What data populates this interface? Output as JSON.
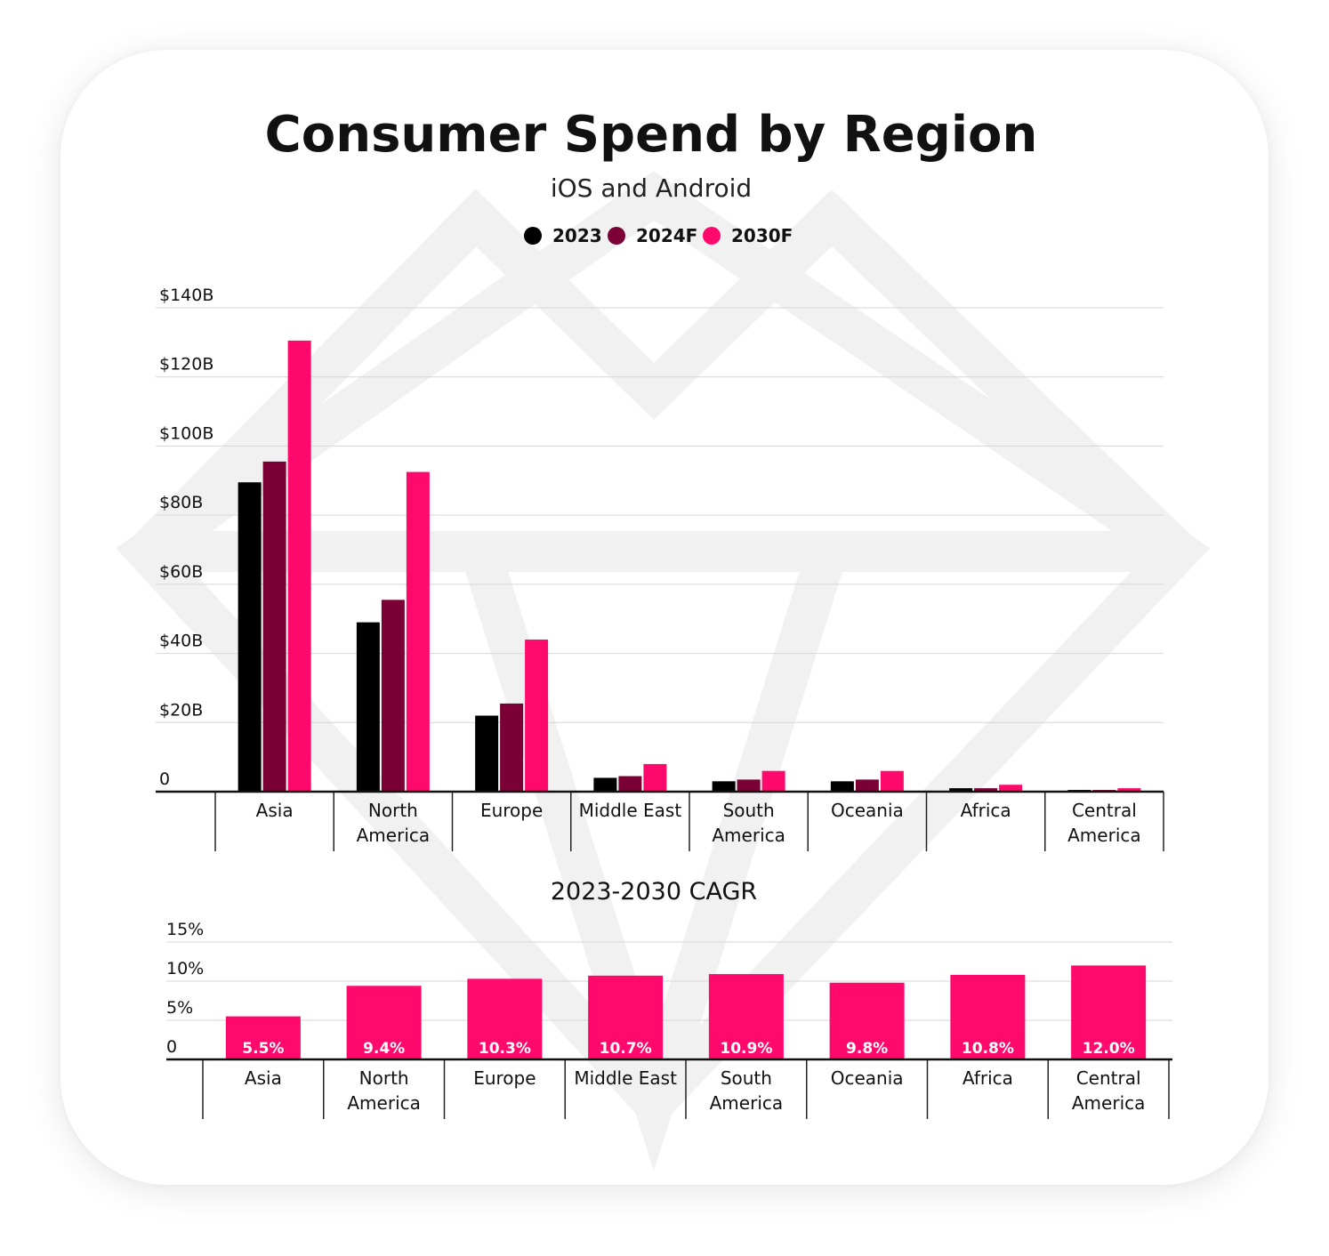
{
  "colors": {
    "2023": "#000000",
    "2024F": "#7a0036",
    "2030F": "#ff0a6c"
  },
  "chart_data": [
    {
      "type": "bar",
      "title": "Consumer Spend by Region",
      "subtitle": "iOS and Android",
      "categories": [
        [
          "Asia"
        ],
        [
          "North",
          "America"
        ],
        [
          "Europe"
        ],
        [
          "Middle East"
        ],
        [
          "South",
          "America"
        ],
        [
          "Oceania"
        ],
        [
          "Africa"
        ],
        [
          "Central",
          "America"
        ]
      ],
      "series": [
        {
          "name": "2023",
          "color_key": "2023",
          "values": [
            89.5,
            49,
            22,
            4,
            3,
            3,
            1,
            0.5
          ]
        },
        {
          "name": "2024F",
          "color_key": "2024F",
          "values": [
            95.5,
            55.5,
            25.5,
            4.5,
            3.5,
            3.5,
            1,
            0.5
          ]
        },
        {
          "name": "2030F",
          "color_key": "2030F",
          "values": [
            130.5,
            92.5,
            44,
            8,
            6,
            6,
            2,
            1
          ]
        }
      ],
      "yticks": [
        0,
        20,
        40,
        60,
        80,
        100,
        120,
        140
      ],
      "ytick_labels": [
        "0",
        "$20B",
        "$40B",
        "$60B",
        "$80B",
        "$100B",
        "$120B",
        "$140B"
      ],
      "ylim": [
        0,
        140
      ],
      "legend": "top-center",
      "grid": true
    },
    {
      "type": "bar",
      "title": "2023-2030 CAGR",
      "categories": [
        [
          "Asia"
        ],
        [
          "North",
          "America"
        ],
        [
          "Europe"
        ],
        [
          "Middle East"
        ],
        [
          "South",
          "America"
        ],
        [
          "Oceania"
        ],
        [
          "Africa"
        ],
        [
          "Central",
          "America"
        ]
      ],
      "values": [
        5.5,
        9.4,
        10.3,
        10.7,
        10.9,
        9.8,
        10.8,
        12.0
      ],
      "value_labels": [
        "5.5%",
        "9.4%",
        "10.3%",
        "10.7%",
        "10.9%",
        "9.8%",
        "10.8%",
        "12.0%"
      ],
      "color_key": "2030F",
      "yticks": [
        0,
        5,
        10,
        15
      ],
      "ytick_labels": [
        "0",
        "5%",
        "10%",
        "15%"
      ],
      "ylim": [
        0,
        15
      ],
      "grid": true
    }
  ]
}
